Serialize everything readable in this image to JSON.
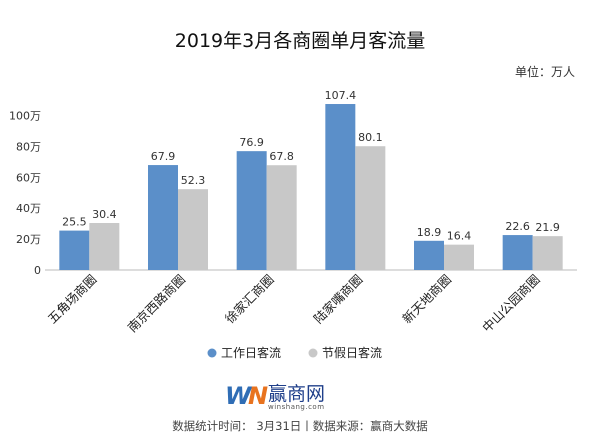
{
  "chart_data": {
    "type": "bar",
    "title": "2019年3月各商圈单月客流量",
    "unit_label": "单位：万人",
    "categories": [
      "五角场商圈",
      "南京西路商圈",
      "徐家汇商圈",
      "陆家嘴商圈",
      "新天地商圈",
      "中山公园商圈"
    ],
    "series": [
      {
        "name": "工作日客流",
        "values": [
          25.5,
          67.9,
          76.9,
          107.4,
          18.9,
          22.6
        ],
        "color": "#5b8fc9"
      },
      {
        "name": "节假日客流",
        "values": [
          30.4,
          52.3,
          67.8,
          80.1,
          16.4,
          21.9
        ],
        "color": "#c8c8c8"
      }
    ],
    "yticks": [
      "0",
      "20万",
      "40万",
      "60万",
      "80万",
      "100万"
    ],
    "ytick_values": [
      0,
      20,
      40,
      60,
      80,
      100
    ],
    "ylim": [
      0,
      110
    ],
    "grid": false,
    "legend_position": "bottom"
  },
  "logo": {
    "brand_w": "W",
    "brand_n": "N",
    "name": "赢商网",
    "url": "winshang.com"
  },
  "footer": "数据统计时间： 3月31日丨数据来源：赢商大数据"
}
